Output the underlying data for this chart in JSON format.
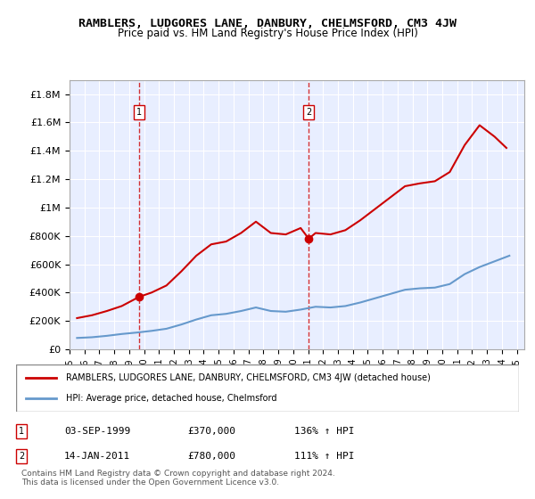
{
  "title": "RAMBLERS, LUDGORES LANE, DANBURY, CHELMSFORD, CM3 4JW",
  "subtitle": "Price paid vs. HM Land Registry's House Price Index (HPI)",
  "background_color": "#f0f4ff",
  "plot_bg_color": "#e8eeff",
  "sale1_date": 1999.67,
  "sale1_price": 370000,
  "sale1_label": "1",
  "sale2_date": 2011.04,
  "sale2_price": 780000,
  "sale2_label": "2",
  "legend_label_red": "RAMBLERS, LUDGORES LANE, DANBURY, CHELMSFORD, CM3 4JW (detached house)",
  "legend_label_blue": "HPI: Average price, detached house, Chelmsford",
  "table_rows": [
    {
      "num": "1",
      "date": "03-SEP-1999",
      "price": "£370,000",
      "hpi": "136% ↑ HPI"
    },
    {
      "num": "2",
      "date": "14-JAN-2011",
      "price": "£780,000",
      "hpi": "111% ↑ HPI"
    }
  ],
  "footer": "Contains HM Land Registry data © Crown copyright and database right 2024.\nThis data is licensed under the Open Government Licence v3.0.",
  "ylim": [
    0,
    1900000
  ],
  "yticks": [
    0,
    200000,
    400000,
    600000,
    800000,
    1000000,
    1200000,
    1400000,
    1600000,
    1800000
  ],
  "xlim_start": 1995.0,
  "xlim_end": 2025.5,
  "red_color": "#cc0000",
  "blue_color": "#6699cc",
  "dashed_color": "#cc0000"
}
